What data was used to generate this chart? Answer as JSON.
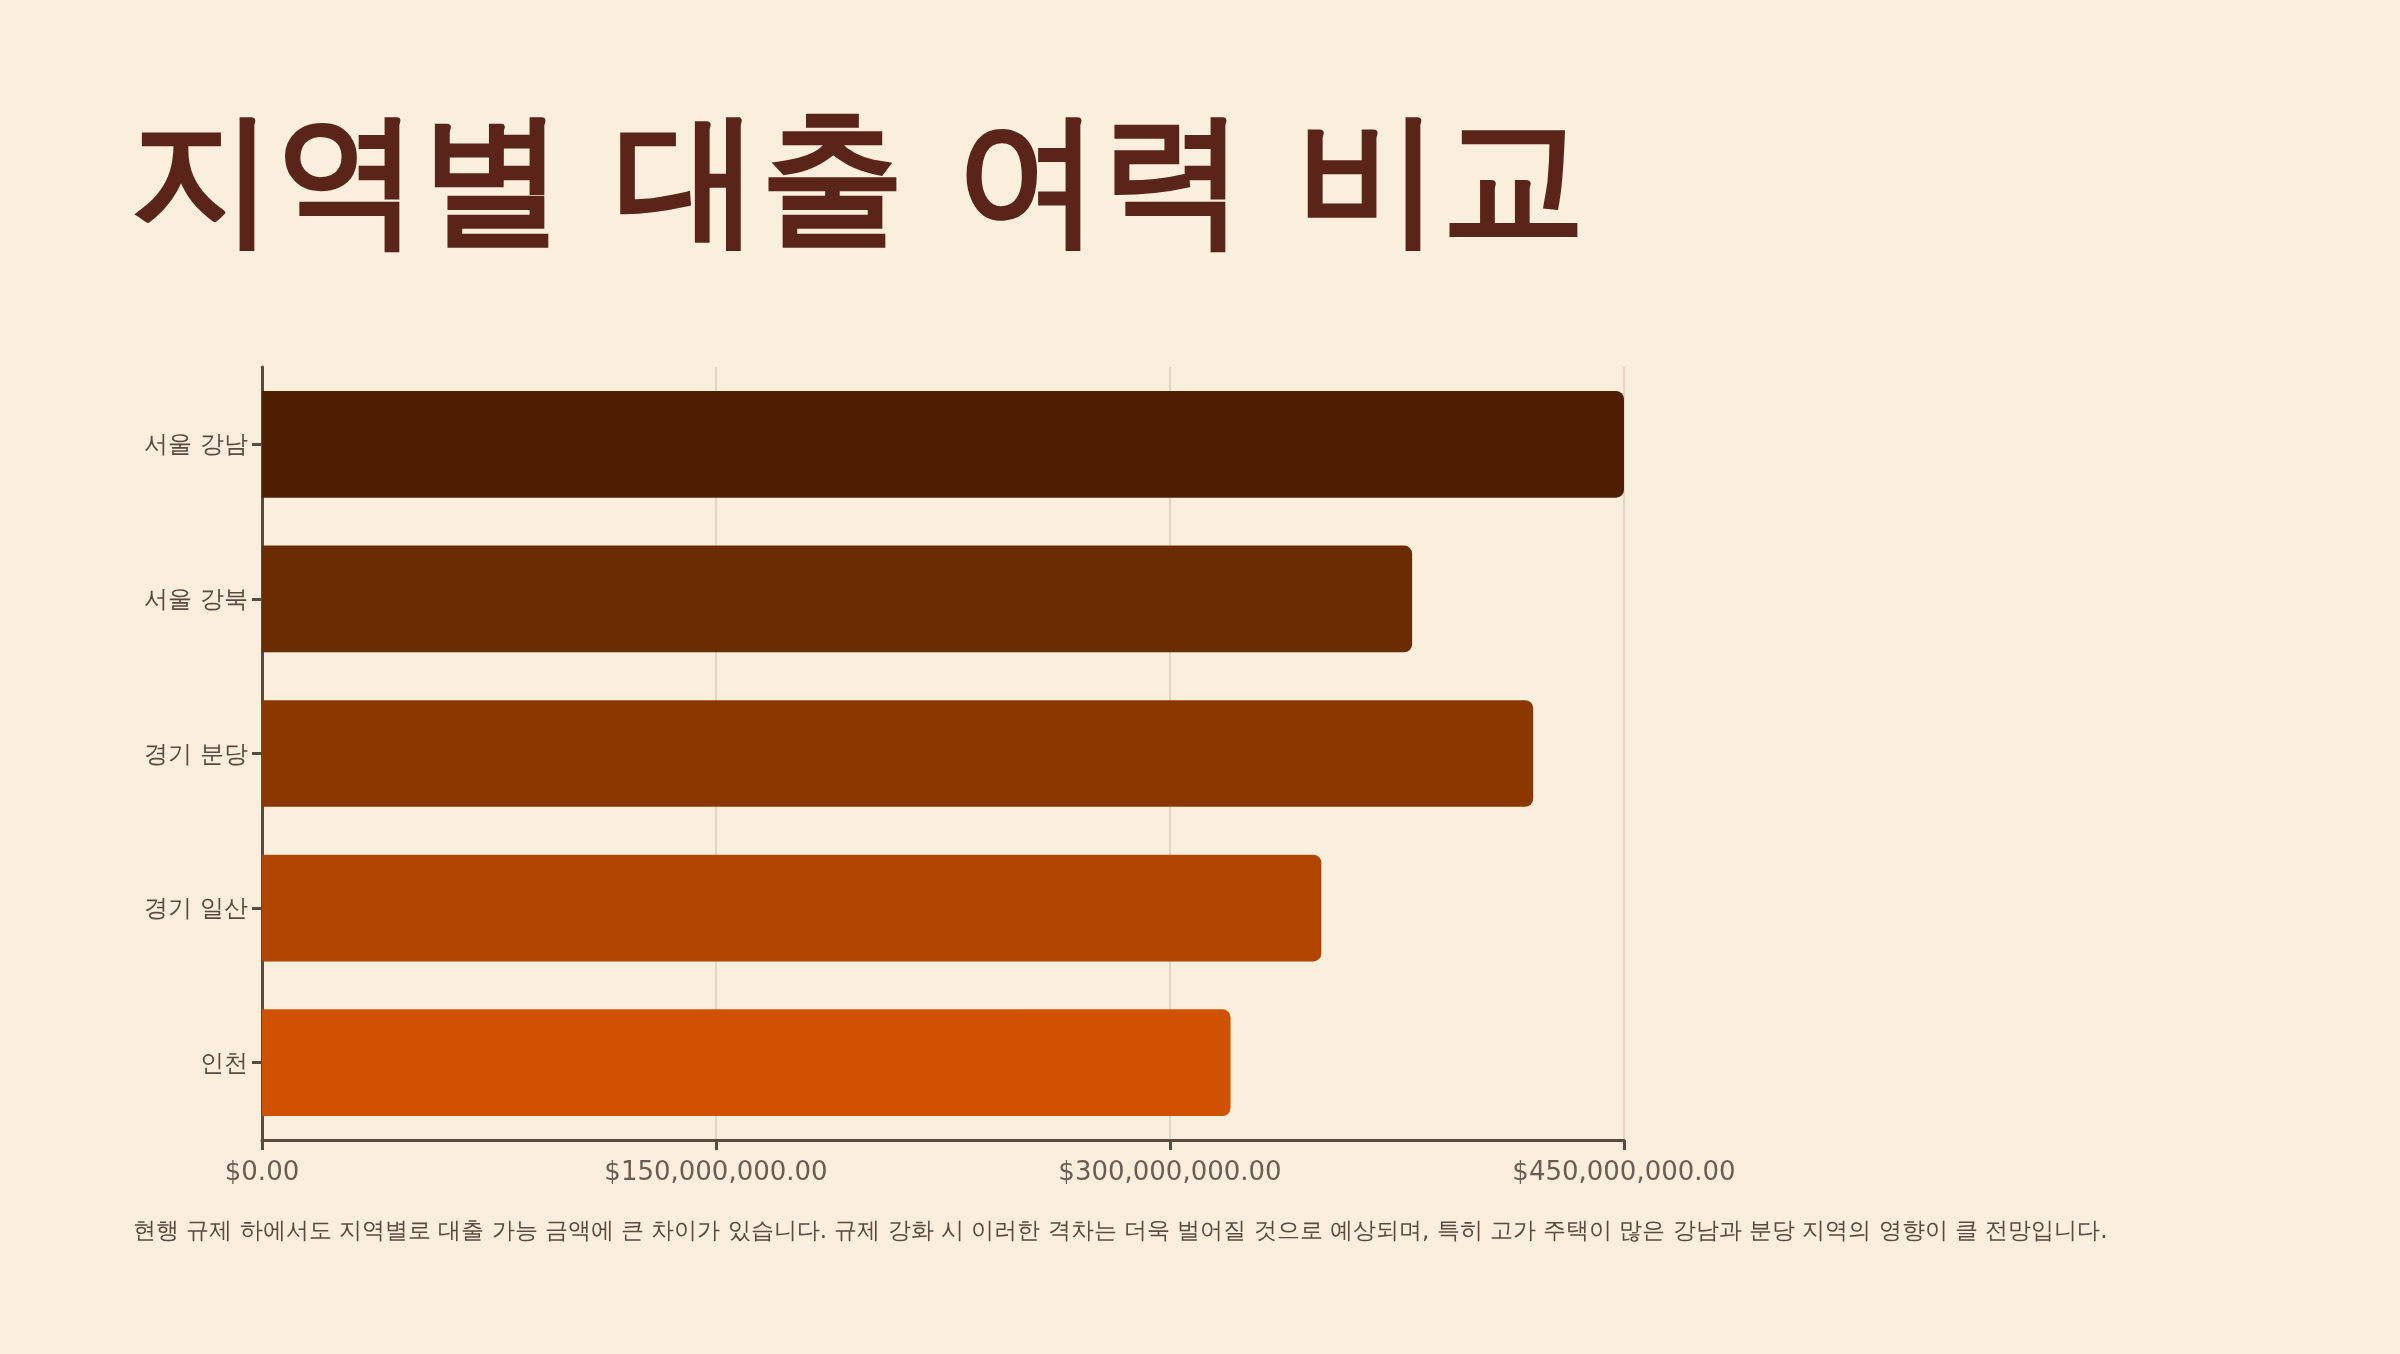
{
  "chart_data": {
    "type": "bar",
    "orientation": "horizontal",
    "title": "지역별 대출 여력 비교",
    "categories": [
      "서울 강남",
      "서울 강북",
      "경기 분당",
      "경기 일산",
      "인천"
    ],
    "values": [
      450000000,
      380000000,
      420000000,
      350000000,
      320000000
    ],
    "colors": [
      "#4f1e00",
      "#6b2b00",
      "#8a3700",
      "#b04400",
      "#d05200"
    ],
    "xlim": [
      0,
      450000000
    ],
    "xticks": [
      {
        "value": 0,
        "label": "$0.00"
      },
      {
        "value": 150000000,
        "label": "$150,000,000.00"
      },
      {
        "value": 300000000,
        "label": "$300,000,000.00"
      },
      {
        "value": 450000000,
        "label": "$450,000,000.00"
      }
    ],
    "grid": "x",
    "annotations": [
      "현행 규제 하에서도 지역별로 대출 가능 금액에 큰 차이가 있습니다. 규제 강화 시 이러한 격차는 더욱 벌어질 것으로 예상되며, 특히 고가 주택이 많은 강남과 분당 지역의 영향이 클 전망입니다."
    ]
  }
}
